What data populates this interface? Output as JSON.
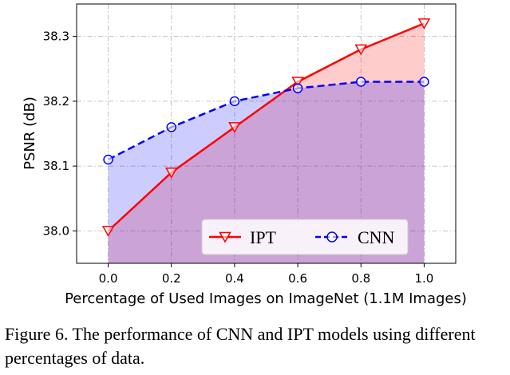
{
  "chart_data": {
    "type": "line",
    "xlabel": "Percentage of Used Images on ImageNet (1.1M Images)",
    "ylabel": "PSNR (dB)",
    "x": [
      0.0,
      0.2,
      0.4,
      0.6,
      0.8,
      1.0
    ],
    "x_tick_labels": [
      "0.0",
      "0.2",
      "0.4",
      "0.6",
      "0.8",
      "1.0"
    ],
    "y_ticks": [
      38.0,
      38.1,
      38.2,
      38.3
    ],
    "y_tick_labels": [
      "38.0",
      "38.1",
      "38.2",
      "38.3"
    ],
    "xlim": [
      -0.1,
      1.1
    ],
    "ylim": [
      37.95,
      38.35
    ],
    "grid": true,
    "legend_position": "lower-right",
    "series": [
      {
        "name": "IPT",
        "values": [
          38.0,
          38.09,
          38.16,
          38.23,
          38.28,
          38.32
        ],
        "color": "#ff0000",
        "fill": "#ff0000",
        "line_style": "solid",
        "marker": "triangle-down"
      },
      {
        "name": "CNN",
        "values": [
          38.11,
          38.16,
          38.2,
          38.22,
          38.23,
          38.23
        ],
        "color": "#0000ff",
        "fill": "#0000ff",
        "line_style": "dashed",
        "marker": "circle"
      }
    ]
  },
  "caption": "Figure 6. The performance of CNN and IPT models using different percentages of data."
}
